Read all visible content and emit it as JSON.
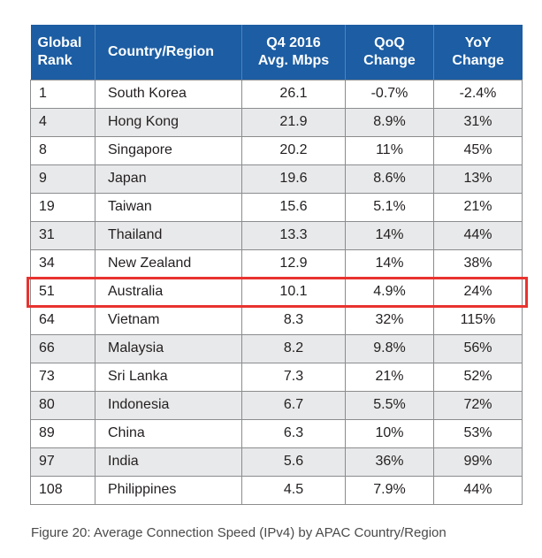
{
  "table": {
    "headers": {
      "rank": "Global\nRank",
      "country": "Country/Region",
      "mbps": "Q4 2016\nAvg. Mbps",
      "qoq": "QoQ\nChange",
      "yoy": "YoY\nChange"
    },
    "rows": [
      {
        "rank": "1",
        "country": "South Korea",
        "mbps": "26.1",
        "qoq": "-0.7%",
        "yoy": "-2.4%"
      },
      {
        "rank": "4",
        "country": "Hong Kong",
        "mbps": "21.9",
        "qoq": "8.9%",
        "yoy": "31%"
      },
      {
        "rank": "8",
        "country": "Singapore",
        "mbps": "20.2",
        "qoq": "11%",
        "yoy": "45%"
      },
      {
        "rank": "9",
        "country": "Japan",
        "mbps": "19.6",
        "qoq": "8.6%",
        "yoy": "13%"
      },
      {
        "rank": "19",
        "country": "Taiwan",
        "mbps": "15.6",
        "qoq": "5.1%",
        "yoy": "21%"
      },
      {
        "rank": "31",
        "country": "Thailand",
        "mbps": "13.3",
        "qoq": "14%",
        "yoy": "44%"
      },
      {
        "rank": "34",
        "country": "New Zealand",
        "mbps": "12.9",
        "qoq": "14%",
        "yoy": "38%"
      },
      {
        "rank": "51",
        "country": "Australia",
        "mbps": "10.1",
        "qoq": "4.9%",
        "yoy": "24%"
      },
      {
        "rank": "64",
        "country": "Vietnam",
        "mbps": "8.3",
        "qoq": "32%",
        "yoy": "115%"
      },
      {
        "rank": "66",
        "country": "Malaysia",
        "mbps": "8.2",
        "qoq": "9.8%",
        "yoy": "56%"
      },
      {
        "rank": "73",
        "country": "Sri Lanka",
        "mbps": "7.3",
        "qoq": "21%",
        "yoy": "52%"
      },
      {
        "rank": "80",
        "country": "Indonesia",
        "mbps": "6.7",
        "qoq": "5.5%",
        "yoy": "72%"
      },
      {
        "rank": "89",
        "country": "China",
        "mbps": "6.3",
        "qoq": "10%",
        "yoy": "53%"
      },
      {
        "rank": "97",
        "country": "India",
        "mbps": "5.6",
        "qoq": "36%",
        "yoy": "99%"
      },
      {
        "rank": "108",
        "country": "Philippines",
        "mbps": "4.5",
        "qoq": "7.9%",
        "yoy": "44%"
      }
    ],
    "highlighted_country": "Australia"
  },
  "caption": "Figure 20: Average Connection Speed (IPv4) by APAC Country/Region",
  "colors": {
    "header_bg": "#1c5da3",
    "highlight_border": "#e8332f",
    "stripe": "#e8e9ea"
  }
}
